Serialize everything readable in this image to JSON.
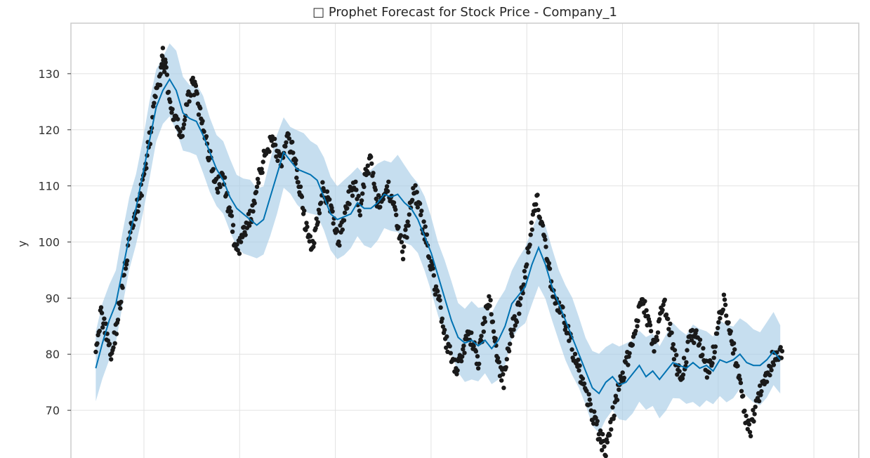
{
  "chart_data": {
    "type": "line",
    "title": "□ Prophet Forecast for Stock Price - Company_1",
    "xlabel": "",
    "ylabel": "y",
    "ylim": [
      61.5,
      139
    ],
    "xlim": [
      -37,
      1137
    ],
    "yticks": [
      70,
      80,
      90,
      100,
      110,
      120,
      130
    ],
    "grid": true,
    "legend": "none",
    "colors": {
      "forecast": "#0072B2",
      "interval": "#A8CCE6",
      "observed": "#1a1a1a",
      "grid": "#e2e2e2",
      "frame": "#cccccc"
    },
    "series": [
      {
        "role": "forecast",
        "style": "line",
        "x": [
          0,
          10,
          20,
          30,
          40,
          50,
          60,
          70,
          80,
          90,
          100,
          110,
          120,
          130,
          140,
          150,
          160,
          170,
          180,
          190,
          200,
          210,
          220,
          230,
          240,
          250,
          260,
          270,
          280,
          290,
          300,
          310,
          320,
          330,
          340,
          350,
          360,
          370,
          380,
          390,
          400,
          410,
          420,
          430,
          440,
          450,
          460,
          470,
          480,
          490,
          500,
          510,
          520,
          530,
          540,
          550,
          560,
          570,
          580,
          590,
          600,
          610,
          620,
          630,
          640,
          650,
          660,
          670,
          680,
          690,
          700,
          710,
          720,
          730,
          740,
          750,
          760,
          770,
          780,
          790,
          800,
          810,
          820,
          830,
          840,
          850,
          860,
          870,
          880,
          890,
          900,
          910,
          920,
          930,
          940,
          950,
          960,
          970,
          980,
          990,
          1000,
          1010,
          1020
        ],
        "values": [
          77.5,
          82,
          86,
          89,
          95,
          101,
          106,
          112,
          118,
          124,
          127,
          129,
          127,
          123,
          122,
          121.5,
          119,
          116,
          113,
          111,
          108,
          106,
          105,
          104,
          103,
          104,
          108,
          112,
          116,
          114.5,
          113,
          112.5,
          112,
          111,
          108,
          105,
          104,
          104.5,
          105,
          107,
          106,
          106,
          107,
          108.5,
          108,
          108.5,
          107,
          106,
          104,
          101,
          98,
          94,
          90,
          86,
          83,
          82,
          82.5,
          81.5,
          82.5,
          81,
          82.5,
          85,
          89,
          90.5,
          92,
          96,
          99,
          96,
          92,
          89,
          86,
          83,
          80,
          77,
          74,
          73,
          75,
          76,
          74.5,
          75,
          76.5,
          78,
          76,
          77,
          75.5,
          77,
          78.5,
          78,
          77.5,
          78.5,
          77.5,
          78,
          77,
          79,
          78.5,
          79,
          80,
          78.5,
          78,
          78,
          79,
          80.5,
          79
        ]
      },
      {
        "role": "interval",
        "style": "band",
        "upper_offset": 6.5,
        "lower_offset": 6.5
      },
      {
        "role": "observed",
        "style": "points",
        "x": [
          0,
          8,
          16,
          24,
          32,
          40,
          48,
          56,
          64,
          72,
          80,
          88,
          96,
          100,
          104,
          112,
          120,
          128,
          136,
          144,
          150,
          158,
          166,
          174,
          182,
          190,
          198,
          206,
          214,
          222,
          230,
          238,
          246,
          254,
          262,
          270,
          278,
          286,
          294,
          300,
          306,
          314,
          322,
          330,
          338,
          346,
          354,
          362,
          370,
          378,
          386,
          394,
          402,
          410,
          418,
          426,
          434,
          442,
          450,
          458,
          466,
          474,
          482,
          490,
          498,
          506,
          514,
          522,
          530,
          538,
          546,
          554,
          562,
          570,
          578,
          586,
          594,
          600,
          608,
          616,
          624,
          632,
          640,
          648,
          656,
          664,
          672,
          680,
          688,
          696,
          704,
          712,
          720,
          728,
          736,
          744,
          752,
          760,
          768,
          776,
          784,
          792,
          800,
          808,
          816,
          824,
          832,
          840,
          848,
          856,
          864,
          872,
          880,
          888,
          896,
          904,
          912,
          920,
          928,
          936,
          944,
          952,
          960,
          968,
          976,
          984,
          992,
          1000,
          1008,
          1016
        ],
        "values": [
          82,
          87,
          84,
          80,
          86,
          92,
          99,
          104,
          107,
          112,
          118,
          125,
          129,
          133,
          131,
          124,
          121,
          119,
          124,
          129,
          126,
          121,
          117,
          113,
          110,
          112,
          106,
          101,
          99,
          102,
          104,
          108,
          113,
          116,
          119,
          116,
          114,
          118,
          116,
          112,
          108,
          102,
          99,
          104,
          110,
          107,
          104,
          100,
          105,
          108,
          110,
          106,
          112,
          115,
          108,
          106,
          110,
          108,
          103,
          98,
          104,
          110,
          106,
          102,
          97,
          92,
          88,
          82,
          79,
          77,
          80,
          84,
          82,
          79,
          85,
          90,
          84,
          78,
          75,
          82,
          86,
          89,
          95,
          102,
          108,
          104,
          97,
          92,
          88,
          87,
          84,
          80,
          77,
          74,
          71,
          68,
          65,
          63,
          68,
          72,
          76,
          79,
          83,
          87,
          89,
          85,
          81,
          86,
          89,
          84,
          79,
          75,
          80,
          84,
          83,
          80,
          77,
          80,
          86,
          89,
          85,
          80,
          74,
          69,
          67,
          71,
          74,
          76,
          79,
          80
        ]
      }
    ]
  }
}
